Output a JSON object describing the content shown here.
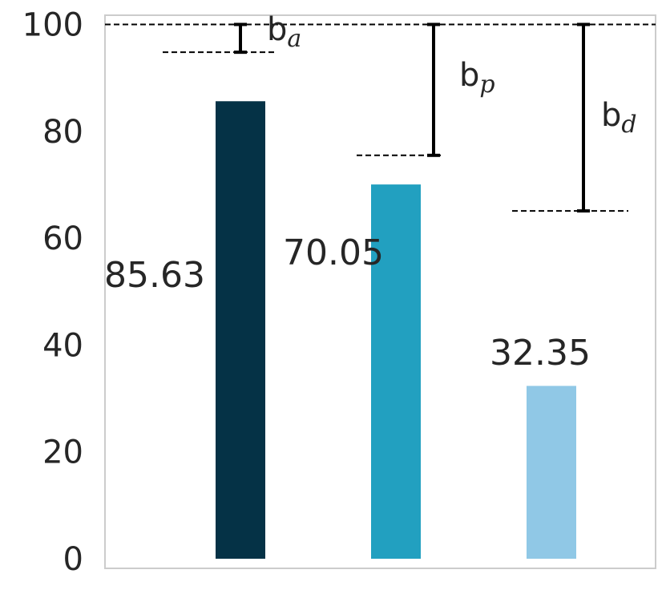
{
  "chart_data": {
    "type": "bar",
    "categories": [
      "",
      "",
      ""
    ],
    "values": [
      85.63,
      70.05,
      32.35
    ],
    "value_labels": [
      "85.63",
      "70.05",
      "32.35"
    ],
    "colors": [
      "#053246",
      "#22a0c0",
      "#90c8e6"
    ],
    "ylim": [
      0,
      102
    ],
    "yticks": [
      0,
      20,
      40,
      60,
      80,
      100
    ],
    "ytick_labels": [
      "0",
      "20",
      "40",
      "60",
      "80",
      "100"
    ],
    "reference_line": 100,
    "grid": false,
    "gap_annotations": [
      {
        "base": "b",
        "sub": "a",
        "from": 94.8,
        "to": 100
      },
      {
        "base": "b",
        "sub": "p",
        "from": 75.5,
        "to": 100
      },
      {
        "base": "b",
        "sub": "d",
        "from": 65.1,
        "to": 100
      }
    ]
  }
}
